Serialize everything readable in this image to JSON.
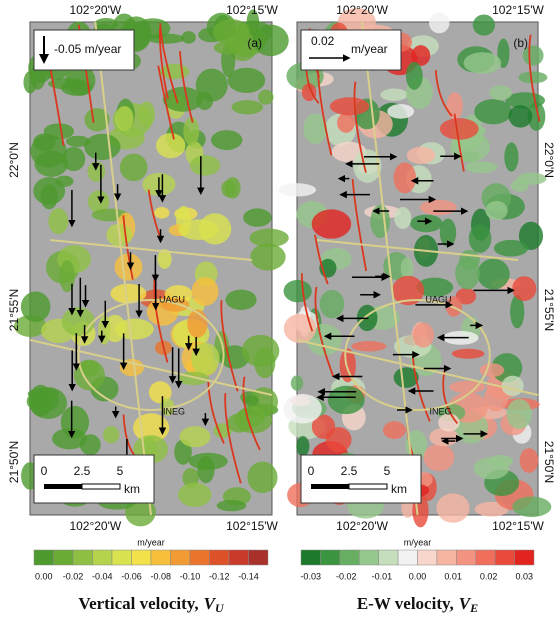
{
  "panels": [
    {
      "label": "(a)",
      "top_lon": [
        "102°20'W",
        "102°15'W"
      ],
      "bottom_lon": [
        "102°20'W",
        "102°15'W"
      ],
      "lat": [
        "22°0'N",
        "21°55'N",
        "21°50'N"
      ],
      "arrow_legend": "-0.05 m/year",
      "places": [
        "UAGU",
        "INEG"
      ],
      "scale": [
        "0",
        "2.5",
        "5",
        "km"
      ],
      "colorbar_unit": "m/year",
      "colorbar_ticks": [
        "0.00",
        "-0.02",
        "-0.04",
        "-0.06",
        "-0.08",
        "-0.10",
        "-0.12",
        "-0.14"
      ],
      "caption": "Vertical velocity,",
      "symbol": "V",
      "subscript": "U"
    },
    {
      "label": "(b)",
      "top_lon": [
        "102°20'W",
        "102°15'W"
      ],
      "bottom_lon": [
        "102°20'W",
        "102°15'W"
      ],
      "lat": [
        "22°0'N",
        "21°55'N",
        "21°50'N"
      ],
      "arrow_value": "0.02",
      "arrow_unit": "m/year",
      "places": [
        "UAGU",
        "INEG"
      ],
      "scale": [
        "0",
        "2.5",
        "5",
        "km"
      ],
      "colorbar_unit": "m/year",
      "colorbar_ticks": [
        "-0.03",
        "-0.02",
        "-0.01",
        "0.00",
        "0.01",
        "0.02",
        "0.03"
      ],
      "caption": "E-W velocity,",
      "symbol": "V",
      "subscript": "E"
    }
  ]
}
